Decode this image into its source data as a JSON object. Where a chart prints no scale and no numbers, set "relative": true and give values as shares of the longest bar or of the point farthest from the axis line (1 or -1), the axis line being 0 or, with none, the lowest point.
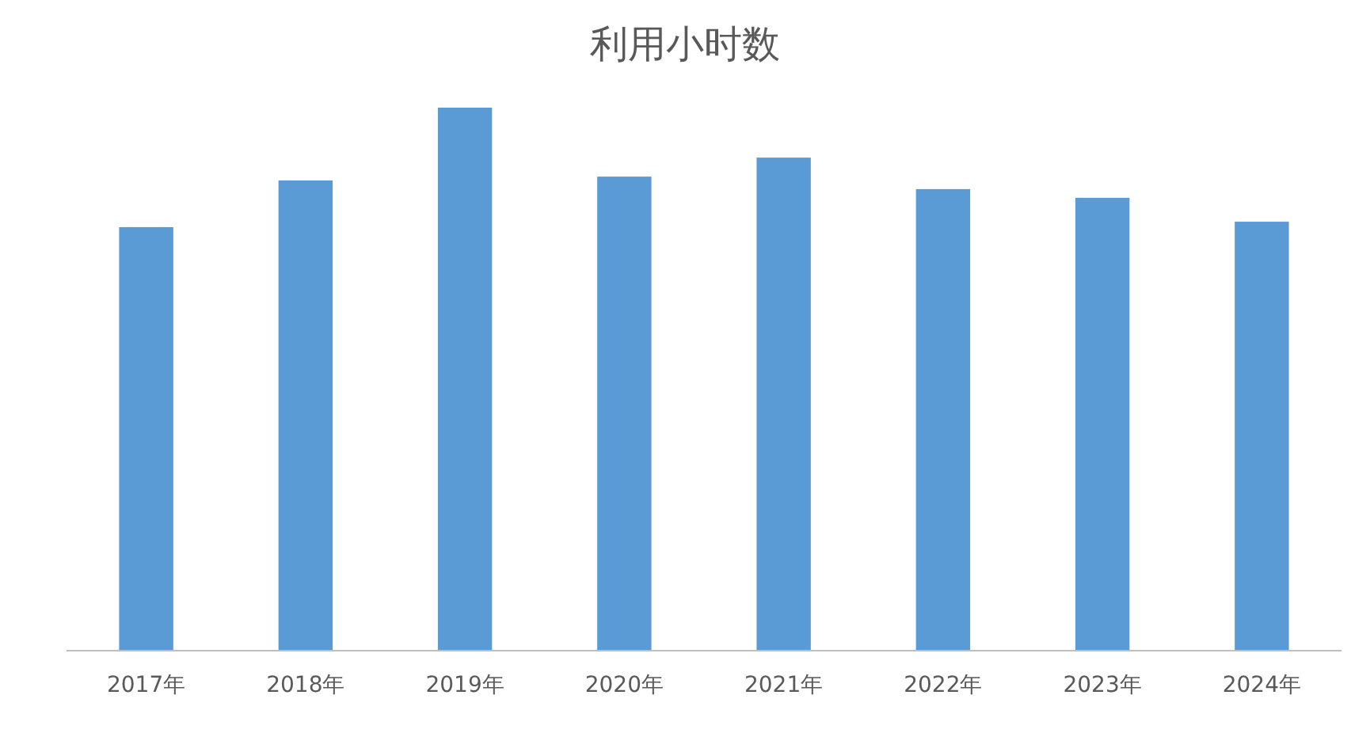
{
  "chart_data": {
    "type": "bar",
    "title": "利用小时数",
    "relative": true,
    "categories": [
      "2017年",
      "2018年",
      "2019年",
      "2020年",
      "2021年",
      "2022年",
      "2023年",
      "2024年"
    ],
    "values": [
      0.78,
      0.866,
      1,
      0.873,
      0.908,
      0.85,
      0.834,
      0.79
    ],
    "color": "#5b9bd5"
  }
}
